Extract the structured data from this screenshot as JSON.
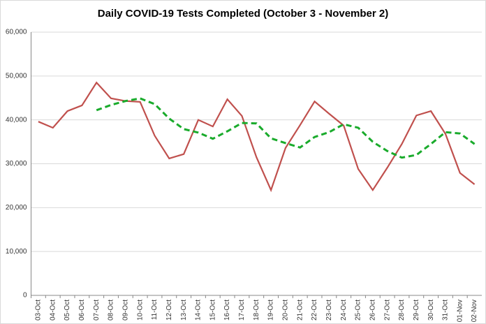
{
  "chart_data": {
    "type": "line",
    "title": "Daily COVID-19 Tests Completed (October 3 - November 2)",
    "categories": [
      "03-Oct",
      "04-Oct",
      "05-Oct",
      "06-Oct",
      "07-Oct",
      "08-Oct",
      "09-Oct",
      "10-Oct",
      "11-Oct",
      "12-Oct",
      "13-Oct",
      "14-Oct",
      "15-Oct",
      "16-Oct",
      "17-Oct",
      "18-Oct",
      "19-Oct",
      "20-Oct",
      "21-Oct",
      "22-Oct",
      "23-Oct",
      "24-Oct",
      "25-Oct",
      "26-Oct",
      "27-Oct",
      "28-Oct",
      "29-Oct",
      "30-Oct",
      "31-Oct",
      "01-Nov",
      "02-Nov"
    ],
    "series": [
      {
        "color": "#c0504d",
        "dash": false,
        "values": [
          39600,
          38200,
          42000,
          43300,
          48500,
          44900,
          44300,
          44100,
          36400,
          31200,
          32200,
          40000,
          38500,
          44700,
          40900,
          31500,
          24000,
          33600,
          38800,
          44200,
          41400,
          38700,
          28800,
          24000,
          29100,
          34500,
          41000,
          42000,
          36800,
          27900,
          25300
        ]
      },
      {
        "color": "#1aab2c",
        "dash": true,
        "values": [
          null,
          null,
          null,
          null,
          42200,
          43400,
          44300,
          44900,
          43600,
          40300,
          37900,
          37100,
          35700,
          37400,
          39300,
          39200,
          35800,
          34700,
          33700,
          36100,
          37200,
          39000,
          38200,
          35000,
          32900,
          31400,
          32000,
          34500,
          37200,
          36900,
          34500
        ]
      }
    ],
    "ylim": [
      0,
      60000
    ],
    "yticks": [
      0,
      {
        "value": 10000,
        "label": "10,000"
      },
      {
        "value": 20000,
        "label": "20,000"
      },
      {
        "value": 30000,
        "label": "30,000"
      },
      {
        "value": 40000,
        "label": "40,000"
      },
      {
        "value": 50000,
        "label": "50,000"
      },
      {
        "value": 60000,
        "label": "60,000"
      }
    ],
    "grid": true
  }
}
